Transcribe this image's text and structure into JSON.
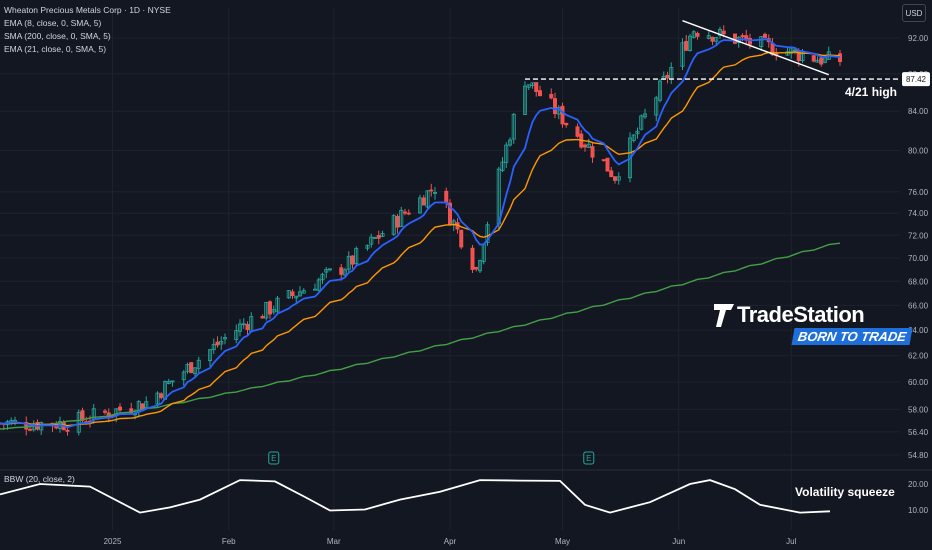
{
  "legend": {
    "title": "Wheaton Precious Metals Corp · 1D · NYSE",
    "ema8": "EMA (8, close, 0, SMA, 5)",
    "sma200": "SMA (200, close, 0, SMA, 5)",
    "ema21": "EMA (21, close, 0, SMA, 5)",
    "bbw": "BBW (20, close, 2)"
  },
  "currency_button": "USD",
  "annotations": {
    "level_label": "4/21 high",
    "squeeze_label": "Volatility squeeze",
    "price_marker": "87.42"
  },
  "logo": {
    "brand": "TradeStation",
    "tagline": "BORN TO TRADE"
  },
  "event_icons": [
    "E",
    "E"
  ],
  "colors": {
    "background": "#131722",
    "up_candle": "#26a69a",
    "down_candle": "#ef5350",
    "ema8": "#2962ff",
    "ema21": "#ff9800",
    "sma200": "#43a047",
    "bbw_line": "#ffffff",
    "grid": "#1e222d",
    "axis_text": "#b2b5be"
  },
  "chart_data": [
    {
      "type": "candlestick",
      "symbol": "Wheaton Precious Metals Corp",
      "interval": "1D",
      "exchange": "NYSE",
      "yaxis_ticks": [
        54.8,
        56.4,
        58.0,
        60.0,
        62.0,
        64.0,
        66.0,
        68.0,
        70.0,
        72.0,
        74.0,
        76.0,
        80.0,
        84.0,
        88.0,
        92.0
      ],
      "x_ticks": [
        "2025",
        "Feb",
        "Mar",
        "Apr",
        "May",
        "Jun",
        "Jul"
      ],
      "key_points": [
        {
          "date": "2024-12-20",
          "close": 57.0
        },
        {
          "date": "2025-01-10",
          "close": 58.5
        },
        {
          "date": "2025-02-05",
          "close": 64.5
        },
        {
          "date": "2025-03-05",
          "close": 69.5
        },
        {
          "date": "2025-03-28",
          "close": 76.5
        },
        {
          "date": "2025-04-08",
          "close": 69.0
        },
        {
          "date": "2025-04-21",
          "close": 87.42
        },
        {
          "date": "2025-05-15",
          "close": 77.5
        },
        {
          "date": "2025-06-05",
          "close": 93.0
        },
        {
          "date": "2025-07-10",
          "close": 89.5
        }
      ],
      "horizontal_level": {
        "label": "4/21 high",
        "value": 87.42
      },
      "trendline": {
        "from": {
          "date": "2025-06-02",
          "value": 94.0
        },
        "to": {
          "date": "2025-07-11",
          "value": 87.9
        }
      },
      "last_price": 87.42
    },
    {
      "type": "line",
      "name": "BBW (20, close, 2)",
      "yaxis_ticks": [
        10.0,
        20.0
      ],
      "annotation": "Volatility squeeze"
    }
  ]
}
